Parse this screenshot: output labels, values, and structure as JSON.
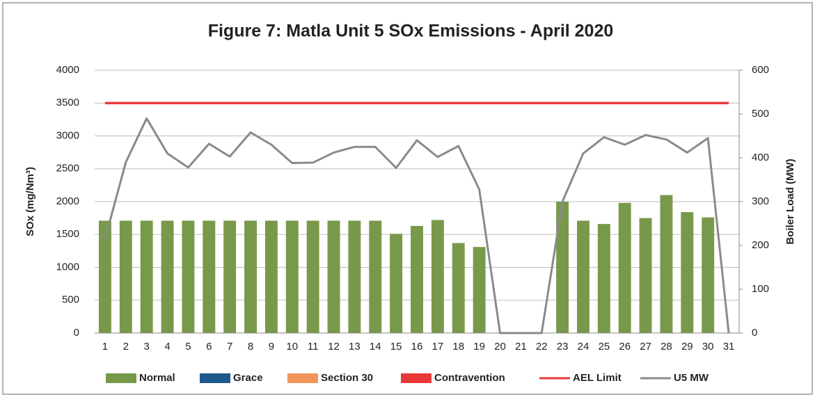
{
  "chart_data": {
    "type": "bar",
    "title": "Figure 7: Matla Unit 5 SOx Emissions -  April 2020",
    "y_label": "SOx (mg/Nm³)",
    "y2_label": "Boiler Load (MW)",
    "categories": [
      "1",
      "2",
      "3",
      "4",
      "5",
      "6",
      "7",
      "8",
      "9",
      "10",
      "11",
      "12",
      "13",
      "14",
      "15",
      "16",
      "17",
      "18",
      "19",
      "20",
      "21",
      "22",
      "23",
      "24",
      "25",
      "26",
      "27",
      "28",
      "29",
      "30",
      "31"
    ],
    "series": [
      {
        "name": "Normal",
        "type": "bar",
        "color": "#78994a",
        "values": [
          1710,
          1710,
          1710,
          1710,
          1710,
          1710,
          1710,
          1710,
          1710,
          1710,
          1710,
          1710,
          1710,
          1710,
          1510,
          1630,
          1720,
          1370,
          1310,
          0,
          0,
          0,
          2000,
          1710,
          1660,
          1980,
          1750,
          2100,
          1840,
          1760,
          0
        ]
      },
      {
        "name": "Grace",
        "type": "bar",
        "color": "#1f5a8c",
        "values": [
          0,
          0,
          0,
          0,
          0,
          0,
          0,
          0,
          0,
          0,
          0,
          0,
          0,
          0,
          0,
          0,
          0,
          0,
          0,
          0,
          0,
          0,
          0,
          0,
          0,
          0,
          0,
          0,
          0,
          0,
          0
        ]
      },
      {
        "name": "Section 30",
        "type": "bar",
        "color": "#f0965a",
        "values": [
          0,
          0,
          0,
          0,
          0,
          0,
          0,
          0,
          0,
          0,
          0,
          0,
          0,
          0,
          0,
          0,
          0,
          0,
          0,
          0,
          0,
          0,
          0,
          0,
          0,
          0,
          0,
          0,
          0,
          0,
          0
        ]
      },
      {
        "name": "Contravention",
        "type": "bar",
        "color": "#e8393a",
        "values": [
          0,
          0,
          0,
          0,
          0,
          0,
          0,
          0,
          0,
          0,
          0,
          0,
          0,
          0,
          0,
          0,
          0,
          0,
          0,
          0,
          0,
          0,
          0,
          0,
          0,
          0,
          0,
          0,
          0,
          0,
          0
        ]
      },
      {
        "name": "AEL Limit",
        "type": "line",
        "color": "#e8393a",
        "values": [
          3500,
          3500,
          3500,
          3500,
          3500,
          3500,
          3500,
          3500,
          3500,
          3500,
          3500,
          3500,
          3500,
          3500,
          3500,
          3500,
          3500,
          3500,
          3500,
          3500,
          3500,
          3500,
          3500,
          3500,
          3500,
          3500,
          3500,
          3500,
          3500,
          3500,
          3500
        ]
      },
      {
        "name": "U5 MW",
        "type": "line",
        "axis": "y2",
        "color": "#8a8a8a",
        "values": [
          215,
          390,
          490,
          410,
          378,
          432,
          403,
          458,
          430,
          388,
          389,
          412,
          425,
          425,
          377,
          440,
          402,
          427,
          328,
          0,
          0,
          0,
          300,
          410,
          447,
          430,
          452,
          442,
          412,
          445,
          0
        ]
      }
    ],
    "ylim": [
      0,
      4000
    ],
    "yticks": [
      0,
      500,
      1000,
      1500,
      2000,
      2500,
      3000,
      3500,
      4000
    ],
    "y2lim": [
      0,
      600
    ],
    "y2ticks": [
      0,
      100,
      200,
      300,
      400,
      500,
      600
    ],
    "grid": true,
    "legend": "bottom"
  }
}
